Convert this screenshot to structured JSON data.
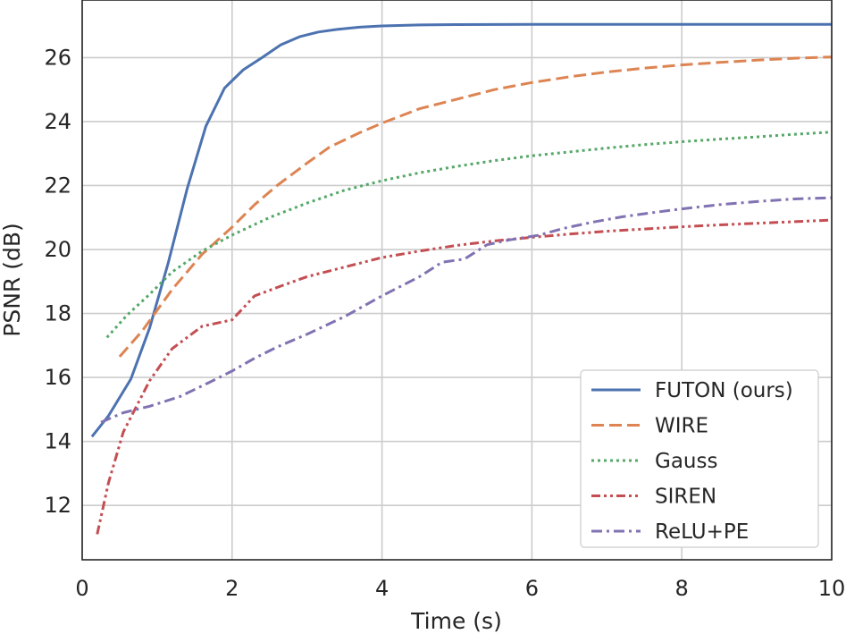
{
  "chart_data": {
    "type": "line",
    "title": "",
    "xlabel": "Time (s)",
    "ylabel": "PSNR (dB)",
    "xlim": [
      0,
      10
    ],
    "ylim": [
      10.3,
      27.8
    ],
    "x_ticks": [
      0,
      2,
      4,
      6,
      8,
      10
    ],
    "y_ticks": [
      12,
      14,
      16,
      18,
      20,
      22,
      24,
      26
    ],
    "grid": true,
    "legend_position": "lower-right",
    "series": [
      {
        "name": "FUTON (ours)",
        "color": "#4c72b0",
        "style": "solid",
        "points": [
          [
            0.13,
            14.15
          ],
          [
            0.35,
            14.8
          ],
          [
            0.65,
            15.95
          ],
          [
            0.9,
            17.55
          ],
          [
            1.15,
            19.6
          ],
          [
            1.4,
            21.9
          ],
          [
            1.65,
            23.85
          ],
          [
            1.9,
            25.05
          ],
          [
            2.15,
            25.62
          ],
          [
            2.4,
            26.0
          ],
          [
            2.65,
            26.4
          ],
          [
            2.9,
            26.65
          ],
          [
            3.15,
            26.8
          ],
          [
            3.4,
            26.88
          ],
          [
            3.7,
            26.95
          ],
          [
            4.0,
            26.99
          ],
          [
            4.5,
            27.02
          ],
          [
            5.0,
            27.03
          ],
          [
            6.0,
            27.04
          ],
          [
            7.0,
            27.04
          ],
          [
            8.0,
            27.04
          ],
          [
            9.0,
            27.04
          ],
          [
            10.0,
            27.04
          ]
        ]
      },
      {
        "name": "WIRE",
        "color": "#dd8452",
        "style": "dashed",
        "points": [
          [
            0.5,
            16.65
          ],
          [
            0.8,
            17.45
          ],
          [
            1.2,
            18.75
          ],
          [
            1.6,
            19.85
          ],
          [
            2.0,
            20.7
          ],
          [
            2.3,
            21.4
          ],
          [
            2.6,
            22.0
          ],
          [
            3.0,
            22.7
          ],
          [
            3.3,
            23.2
          ],
          [
            3.7,
            23.65
          ],
          [
            4.0,
            23.95
          ],
          [
            4.5,
            24.4
          ],
          [
            5.0,
            24.7
          ],
          [
            5.5,
            25.0
          ],
          [
            6.0,
            25.22
          ],
          [
            6.5,
            25.4
          ],
          [
            7.0,
            25.55
          ],
          [
            7.5,
            25.67
          ],
          [
            8.0,
            25.77
          ],
          [
            8.5,
            25.85
          ],
          [
            9.0,
            25.92
          ],
          [
            9.5,
            25.98
          ],
          [
            10.0,
            26.02
          ]
        ]
      },
      {
        "name": "Gauss",
        "color": "#55a868",
        "style": "dotted",
        "points": [
          [
            0.33,
            17.25
          ],
          [
            0.6,
            17.95
          ],
          [
            0.9,
            18.6
          ],
          [
            1.2,
            19.3
          ],
          [
            1.6,
            19.95
          ],
          [
            2.0,
            20.45
          ],
          [
            2.5,
            21.0
          ],
          [
            3.0,
            21.45
          ],
          [
            3.5,
            21.85
          ],
          [
            4.0,
            22.15
          ],
          [
            4.5,
            22.4
          ],
          [
            5.0,
            22.6
          ],
          [
            5.5,
            22.78
          ],
          [
            6.0,
            22.93
          ],
          [
            6.5,
            23.05
          ],
          [
            7.0,
            23.17
          ],
          [
            7.5,
            23.28
          ],
          [
            8.0,
            23.37
          ],
          [
            8.5,
            23.45
          ],
          [
            9.0,
            23.52
          ],
          [
            9.5,
            23.6
          ],
          [
            10.0,
            23.67
          ]
        ]
      },
      {
        "name": "SIREN",
        "color": "#c44e52",
        "style": "dashdotdot",
        "points": [
          [
            0.2,
            11.1
          ],
          [
            0.35,
            12.7
          ],
          [
            0.55,
            14.3
          ],
          [
            0.9,
            15.9
          ],
          [
            1.2,
            16.9
          ],
          [
            1.6,
            17.6
          ],
          [
            2.0,
            17.8
          ],
          [
            2.3,
            18.55
          ],
          [
            2.7,
            18.9
          ],
          [
            3.0,
            19.15
          ],
          [
            3.5,
            19.45
          ],
          [
            4.0,
            19.75
          ],
          [
            4.5,
            19.95
          ],
          [
            5.0,
            20.13
          ],
          [
            5.5,
            20.27
          ],
          [
            6.0,
            20.38
          ],
          [
            6.5,
            20.48
          ],
          [
            7.0,
            20.57
          ],
          [
            7.5,
            20.64
          ],
          [
            8.0,
            20.71
          ],
          [
            8.5,
            20.77
          ],
          [
            9.0,
            20.82
          ],
          [
            9.5,
            20.87
          ],
          [
            10.0,
            20.92
          ]
        ]
      },
      {
        "name": "ReLU+PE",
        "color": "#8172b2",
        "style": "dashdot",
        "points": [
          [
            0.25,
            14.6
          ],
          [
            0.55,
            14.9
          ],
          [
            0.9,
            15.1
          ],
          [
            1.3,
            15.4
          ],
          [
            1.7,
            15.85
          ],
          [
            2.0,
            16.2
          ],
          [
            2.3,
            16.6
          ],
          [
            2.6,
            16.95
          ],
          [
            3.0,
            17.35
          ],
          [
            3.5,
            17.9
          ],
          [
            4.0,
            18.55
          ],
          [
            4.5,
            19.15
          ],
          [
            4.8,
            19.6
          ],
          [
            5.1,
            19.7
          ],
          [
            5.4,
            20.15
          ],
          [
            5.7,
            20.3
          ],
          [
            6.1,
            20.45
          ],
          [
            6.4,
            20.65
          ],
          [
            6.8,
            20.85
          ],
          [
            7.2,
            21.02
          ],
          [
            7.6,
            21.15
          ],
          [
            8.0,
            21.27
          ],
          [
            8.5,
            21.4
          ],
          [
            9.0,
            21.5
          ],
          [
            9.5,
            21.58
          ],
          [
            10.0,
            21.62
          ]
        ]
      }
    ]
  }
}
